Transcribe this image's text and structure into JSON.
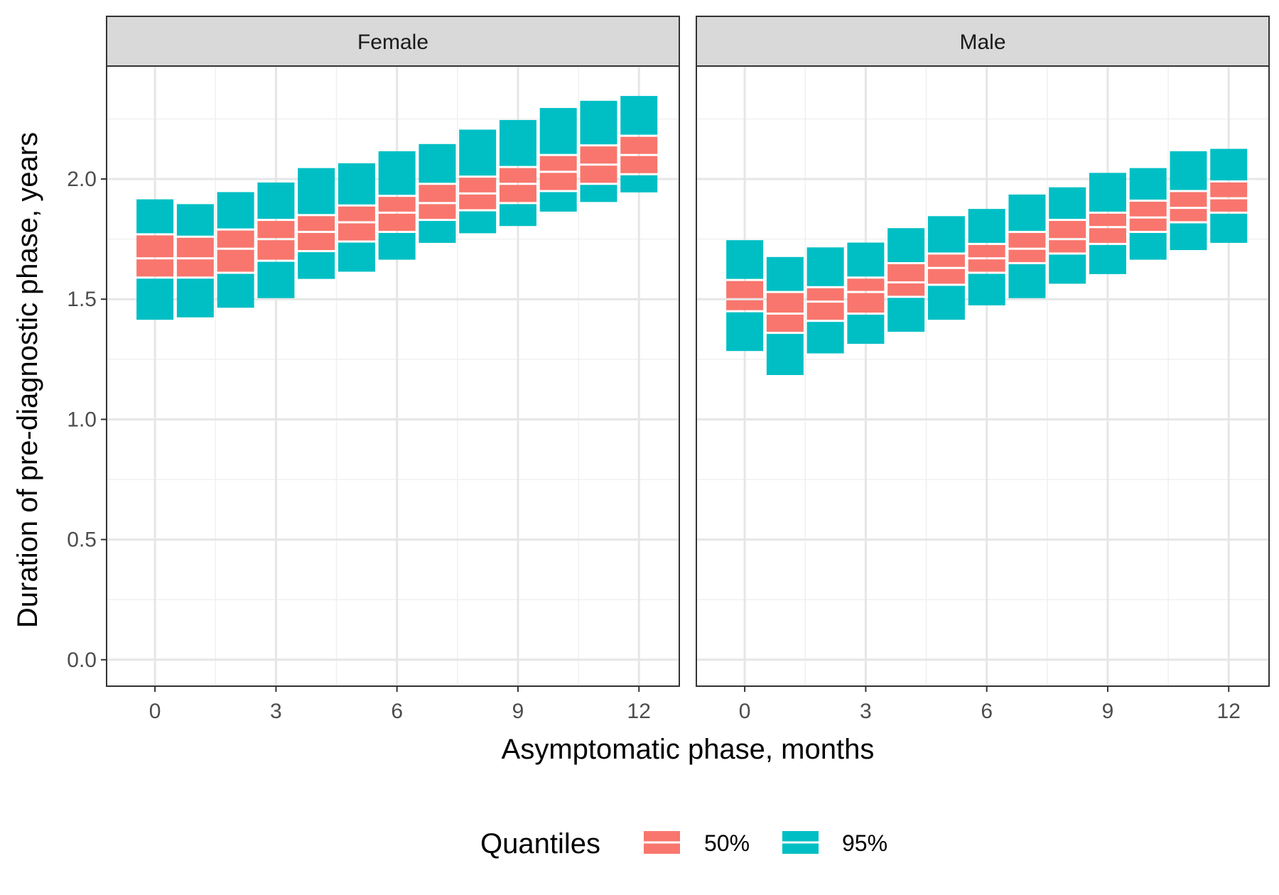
{
  "chart_data": {
    "type": "faceted-quantile-boxes",
    "xlabel": "Asymptomatic phase, months",
    "ylabel": "Duration of pre-diagnostic phase, years",
    "xlim": [
      -1.2,
      13.0
    ],
    "ylim": [
      -0.11,
      2.47
    ],
    "x_ticks": [
      0,
      3,
      6,
      9,
      12
    ],
    "y_ticks": [
      0.0,
      0.5,
      1.0,
      1.5,
      2.0
    ],
    "y_tick_labels": [
      "0.0",
      "0.5",
      "1.0",
      "1.5",
      "2.0"
    ],
    "grid": true,
    "legend": {
      "title": "Quantiles",
      "position": "bottom",
      "entries": [
        {
          "label": "50%",
          "color": "#F8766D"
        },
        {
          "label": "95%",
          "color": "#00BFC4"
        }
      ]
    },
    "colors": {
      "q50": "#F8766D",
      "q95": "#00BFC4"
    },
    "facets": [
      {
        "label": "Female",
        "x": [
          0,
          1,
          2,
          3,
          4,
          5,
          6,
          7,
          8,
          9,
          10,
          11,
          12
        ],
        "q95_low": [
          1.41,
          1.42,
          1.46,
          1.5,
          1.58,
          1.61,
          1.66,
          1.73,
          1.77,
          1.8,
          1.86,
          1.9,
          1.94
        ],
        "q50_low": [
          1.59,
          1.59,
          1.61,
          1.66,
          1.7,
          1.74,
          1.78,
          1.83,
          1.87,
          1.9,
          1.95,
          1.98,
          2.02
        ],
        "median": [
          1.67,
          1.67,
          1.71,
          1.75,
          1.78,
          1.82,
          1.86,
          1.9,
          1.94,
          1.98,
          2.03,
          2.06,
          2.1
        ],
        "q50_high": [
          1.77,
          1.76,
          1.79,
          1.83,
          1.85,
          1.89,
          1.93,
          1.98,
          2.01,
          2.05,
          2.1,
          2.14,
          2.18
        ],
        "q95_high": [
          1.92,
          1.9,
          1.95,
          1.99,
          2.05,
          2.07,
          2.12,
          2.15,
          2.21,
          2.25,
          2.3,
          2.33,
          2.35
        ]
      },
      {
        "label": "Male",
        "x": [
          0,
          1,
          2,
          3,
          4,
          5,
          6,
          7,
          8,
          9,
          10,
          11,
          12
        ],
        "q95_low": [
          1.28,
          1.18,
          1.27,
          1.31,
          1.36,
          1.41,
          1.47,
          1.5,
          1.56,
          1.6,
          1.66,
          1.7,
          1.73
        ],
        "q50_low": [
          1.45,
          1.36,
          1.41,
          1.44,
          1.51,
          1.56,
          1.61,
          1.65,
          1.69,
          1.73,
          1.78,
          1.82,
          1.86
        ],
        "median": [
          1.5,
          1.44,
          1.49,
          1.53,
          1.57,
          1.63,
          1.67,
          1.71,
          1.75,
          1.8,
          1.84,
          1.88,
          1.92
        ],
        "q50_high": [
          1.58,
          1.53,
          1.55,
          1.59,
          1.65,
          1.69,
          1.73,
          1.78,
          1.83,
          1.86,
          1.91,
          1.95,
          1.99
        ],
        "q95_high": [
          1.75,
          1.68,
          1.72,
          1.74,
          1.8,
          1.85,
          1.88,
          1.94,
          1.97,
          2.03,
          2.05,
          2.12,
          2.13
        ]
      }
    ]
  }
}
